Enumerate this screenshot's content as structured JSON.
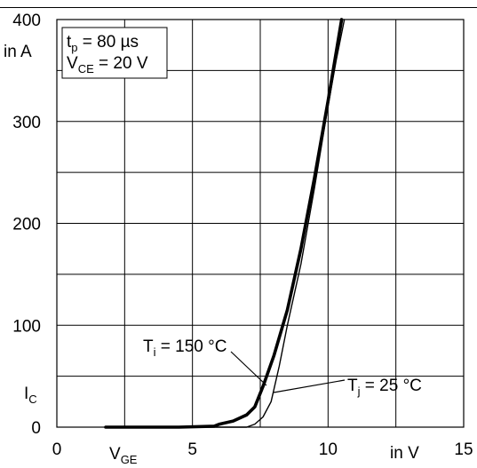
{
  "chart_data": {
    "type": "line",
    "title": "",
    "xlim": [
      0,
      15
    ],
    "ylim": [
      0,
      400
    ],
    "xticks": [
      "0",
      "5",
      "10",
      "15"
    ],
    "yticks": [
      "0",
      "100",
      "200",
      "300",
      "400"
    ],
    "grid": true,
    "xlabel": {
      "symbol": "V",
      "subscript": "GE",
      "unit": "in V"
    },
    "ylabel": {
      "symbol": "I",
      "subscript": "C",
      "unit": "in A"
    },
    "conditions": [
      {
        "symbol": "t",
        "subscript": "p",
        "value": " = 80 µs"
      },
      {
        "symbol": "V",
        "subscript": "CE",
        "value": " = 20 V"
      }
    ],
    "series": [
      {
        "name": "T_i = 150 °C",
        "label": {
          "symbol": "T",
          "subscript": "i",
          "value": " = 150 °C"
        },
        "line_width": "thick",
        "x": [
          1.8,
          3.0,
          4.5,
          5.8,
          6.0,
          6.5,
          7.0,
          7.3,
          7.6,
          8.0,
          8.5,
          9.0,
          9.5,
          10.0,
          10.5
        ],
        "y": [
          0,
          0,
          0,
          1,
          3,
          6,
          12,
          20,
          40,
          70,
          115,
          175,
          245,
          320,
          400
        ]
      },
      {
        "name": "T_j = 25 °C",
        "label": {
          "symbol": "T",
          "subscript": "j",
          "value": " = 25 °C"
        },
        "line_width": "thin",
        "x": [
          5.5,
          6.0,
          6.5,
          7.0,
          7.3,
          7.6,
          7.9,
          8.2,
          8.5,
          9.0,
          9.5,
          10.0,
          10.3,
          10.6
        ],
        "y": [
          0,
          0,
          0,
          0,
          3,
          10,
          25,
          60,
          100,
          160,
          235,
          315,
          360,
          400
        ]
      }
    ]
  }
}
